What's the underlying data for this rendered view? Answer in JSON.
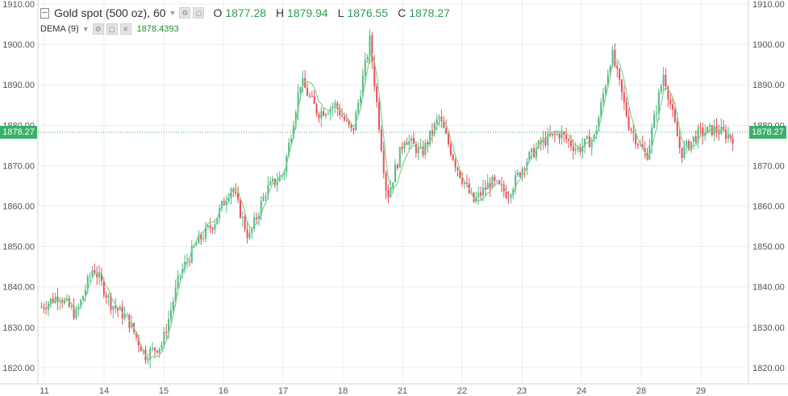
{
  "legend": {
    "symbol": "Gold spot (500 oz)",
    "interval": "60",
    "o_label": "O",
    "o_value": "1877.28",
    "h_label": "H",
    "h_value": "1879.94",
    "l_label": "L",
    "l_value": "1876.55",
    "c_label": "C",
    "c_value": "1878.27",
    "indicator_label": "DEMA (9)",
    "indicator_value": "1878.4393"
  },
  "colors": {
    "up": "#53b987",
    "down": "#eb4d5c",
    "ma": "#7fd48a",
    "grid": "#ececec",
    "last_price_tag": "#3ab06a"
  },
  "chart_data": {
    "type": "candlestick",
    "ylim": [
      1816,
      1911
    ],
    "y_ticks": [
      "1910.00",
      "1900.00",
      "1890.00",
      "1880.00",
      "1870.00",
      "1860.00",
      "1850.00",
      "1840.00",
      "1830.00",
      "1820.00"
    ],
    "x_ticks": [
      "11",
      "14",
      "15",
      "16",
      "17",
      "18",
      "21",
      "22",
      "23",
      "24",
      "25",
      "28",
      "29"
    ],
    "last_price": "1878.27",
    "anchors": [
      [
        "11",
        1835
      ],
      [
        "11",
        1838
      ],
      [
        "11",
        1833
      ],
      [
        "14",
        1845
      ],
      [
        "14",
        1836
      ],
      [
        "14",
        1832
      ],
      [
        "14",
        1823
      ],
      [
        "15",
        1826
      ],
      [
        "15",
        1843
      ],
      [
        "16",
        1851
      ],
      [
        "16",
        1856
      ],
      [
        "16",
        1865
      ],
      [
        "17",
        1852
      ],
      [
        "17",
        1864
      ],
      [
        "17",
        1868
      ],
      [
        "18",
        1891
      ],
      [
        "18",
        1883
      ],
      [
        "18",
        1885
      ],
      [
        "21",
        1878
      ],
      [
        "21",
        1901
      ],
      [
        "21",
        1862
      ],
      [
        "22",
        1877
      ],
      [
        "22",
        1873
      ],
      [
        "22",
        1882
      ],
      [
        "22",
        1870
      ],
      [
        "23",
        1861
      ],
      [
        "23",
        1866
      ],
      [
        "23",
        1863
      ],
      [
        "24",
        1871
      ],
      [
        "24",
        1876
      ],
      [
        "24",
        1878
      ],
      [
        "25",
        1874
      ],
      [
        "25",
        1877
      ],
      [
        "28",
        1898
      ],
      [
        "28",
        1880
      ],
      [
        "28",
        1872
      ],
      [
        "28",
        1893
      ],
      [
        "29",
        1873
      ],
      [
        "29",
        1878
      ],
      [
        "29",
        1879
      ],
      [
        "29",
        1877
      ]
    ]
  }
}
